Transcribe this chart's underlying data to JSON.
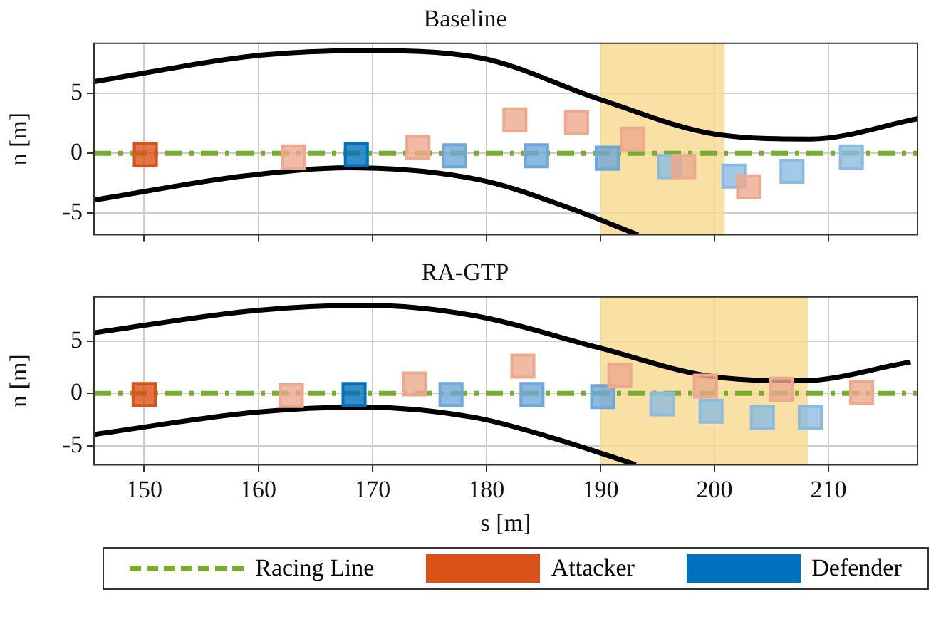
{
  "chart_data": [
    {
      "type": "line",
      "title": "Baseline",
      "ylabel": "n [m]",
      "xlim": [
        145.6,
        217.8
      ],
      "xticks": [
        150,
        160,
        170,
        180,
        190,
        200,
        210
      ],
      "ylim": [
        -6.8,
        9.2
      ],
      "yticks": [
        -5,
        0,
        5
      ],
      "grid": true,
      "tick_labels": "y",
      "bands": [
        {
          "axis": "x",
          "from": 190,
          "to": 200.9,
          "color": "#f7d98e"
        }
      ],
      "series": [
        {
          "type": "line",
          "color": "#000000",
          "x": [
            145.6,
            160.1,
            169,
            179.4,
            190,
            200.1,
            208.4,
            217.8
          ],
          "values": [
            6.0,
            8.2,
            8.6,
            8.0,
            4.5,
            1.6,
            1.2,
            2.9
          ]
        },
        {
          "type": "line",
          "color": "#000000",
          "x": [
            145.6,
            158.6,
            168,
            179.4,
            187.1,
            193.3
          ],
          "values": [
            -3.9,
            -1.9,
            -1.2,
            -2.2,
            -4.5,
            -6.8
          ]
        },
        {
          "type": "line",
          "color": "#77ac30",
          "line_style": "dashed",
          "x": [
            145.6,
            217.8
          ],
          "values": [
            0,
            0
          ]
        },
        {
          "type": "scatter",
          "marker": "square",
          "colors": [
            "#d95319",
            "#eca98d",
            "#eca98d",
            "#eca98d",
            "#eca98d",
            "#eca98d",
            "#eca98d",
            "#eca98d"
          ],
          "x": [
            150.1,
            163.1,
            174,
            182.5,
            187.9,
            192.8,
            197.3,
            203
          ],
          "values": [
            -0.1,
            -0.3,
            0.5,
            2.8,
            2.6,
            1.2,
            -1.1,
            -2.8
          ]
        },
        {
          "type": "scatter",
          "marker": "square",
          "colors": [
            "#0072bd",
            "#6fa8d8",
            "#6fa8d8",
            "#6fa8d8",
            "#8bbbe0",
            "#8bbbe0",
            "#8bbbe0",
            "#8bbbe0"
          ],
          "x": [
            168.6,
            177.2,
            184.4,
            190.6,
            196.1,
            201.7,
            206.8,
            212
          ],
          "values": [
            -0.1,
            -0.2,
            -0.2,
            -0.4,
            -1.1,
            -1.9,
            -1.5,
            -0.3
          ]
        }
      ]
    },
    {
      "type": "line",
      "title": "RA-GTP",
      "xlabel": "s [m]",
      "ylabel": "n [m]",
      "xlim": [
        145.6,
        217.8
      ],
      "xticks": [
        150,
        160,
        170,
        180,
        190,
        200,
        210
      ],
      "ylim": [
        -6.8,
        9.2
      ],
      "yticks": [
        -5,
        0,
        5
      ],
      "grid": true,
      "legend": "bottom",
      "bands": [
        {
          "axis": "x",
          "from": 190,
          "to": 208.2,
          "color": "#f7d98e"
        }
      ],
      "series": [
        {
          "type": "line",
          "color": "#000000",
          "x": [
            145.7,
            159.7,
            169.4,
            179,
            189.7,
            199.3,
            207.5,
            217.2
          ],
          "values": [
            5.8,
            7.9,
            8.4,
            7.4,
            4.4,
            1.7,
            1.2,
            3.0
          ]
        },
        {
          "type": "line",
          "color": "#000000",
          "x": [
            145.7,
            159.7,
            168.9,
            179,
            186.6,
            193.1
          ],
          "values": [
            -3.9,
            -1.8,
            -1.3,
            -2.3,
            -4.5,
            -6.8
          ]
        },
        {
          "type": "line",
          "name": "Racing Line",
          "color": "#77ac30",
          "line_style": "dashed",
          "x": [
            145.6,
            217.8
          ],
          "values": [
            0,
            0
          ]
        },
        {
          "type": "scatter",
          "name": "Attacker",
          "marker": "square",
          "colors": [
            "#d95319",
            "#eca98d",
            "#eca98d",
            "#eca98d",
            "#eca98d",
            "#eca98d",
            "#eca98d",
            "#eca98d"
          ],
          "x": [
            150,
            162.9,
            173.7,
            183.2,
            191.7,
            199.2,
            205.9,
            212.9
          ],
          "values": [
            -0.1,
            -0.2,
            0.9,
            2.6,
            1.7,
            0.7,
            0.4,
            0.1
          ]
        },
        {
          "type": "scatter",
          "name": "Defender",
          "marker": "square",
          "colors": [
            "#0072bd",
            "#6fa8d8",
            "#6fa8d8",
            "#6fa8d8",
            "#8bbbe0",
            "#8bbbe0",
            "#8bbbe0",
            "#8bbbe0"
          ],
          "x": [
            168.4,
            176.9,
            184,
            190.2,
            195.4,
            199.7,
            204.2,
            208.4
          ],
          "values": [
            -0.1,
            -0.1,
            -0.1,
            -0.3,
            -1.0,
            -1.7,
            -2.3,
            -2.3
          ]
        }
      ]
    }
  ]
}
